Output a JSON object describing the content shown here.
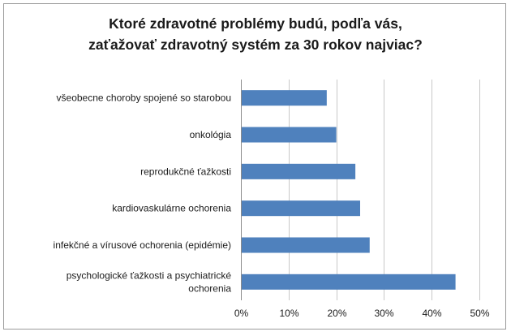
{
  "chart_data": {
    "type": "bar",
    "orientation": "horizontal",
    "title": "Ktoré zdravotné problémy budú, podľa vás, zaťažovať zdravotný systém za 30 rokov najviac?",
    "title_lines": [
      "Ktoré zdravotné problémy budú, podľa vás,",
      "zaťažovať zdravotný systém za 30 rokov najviac?"
    ],
    "categories": [
      "všeobecne choroby spojené so starobou",
      "onkológia",
      "reprodukčné ťažkosti",
      "kardiovaskulárne ochorenia",
      "infekčné a vírusové ochorenia (epidémie)",
      "psychologické ťažkosti a psychiatrické ochorenia"
    ],
    "category_label_lines": [
      [
        "všeobecne choroby spojené so starobou"
      ],
      [
        "onkológia"
      ],
      [
        "reprodukčné ťažkosti"
      ],
      [
        "kardiovaskulárne ochorenia"
      ],
      [
        "infekčné a vírusové ochorenia (epidémie)"
      ],
      [
        "psychologické ťažkosti a psychiatrické",
        "ochorenia"
      ]
    ],
    "values": [
      0.18,
      0.2,
      0.24,
      0.25,
      0.27,
      0.45
    ],
    "xlim": [
      0,
      0.5
    ],
    "x_ticks": [
      0,
      0.1,
      0.2,
      0.3,
      0.4,
      0.5
    ],
    "x_tick_labels": [
      "0%",
      "10%",
      "20%",
      "30%",
      "40%",
      "50%"
    ],
    "xlabel": "",
    "ylabel": "",
    "grid": "vertical",
    "legend": "none",
    "bar_color": "#4f81bd"
  }
}
